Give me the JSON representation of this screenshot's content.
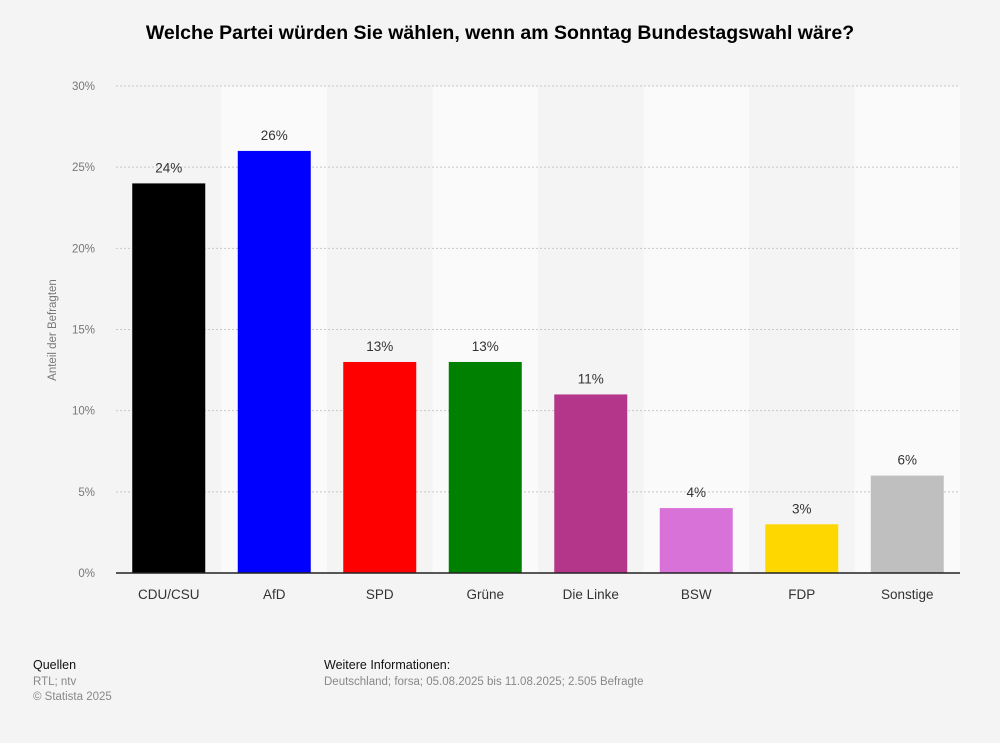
{
  "chart_data": {
    "type": "bar",
    "title": "Welche Partei würden Sie wählen, wenn am Sonntag Bundestagswahl wäre?",
    "xlabel": "",
    "ylabel": "Anteil der Befragten",
    "ylim": [
      0,
      30
    ],
    "yticks": [
      "0%",
      "5%",
      "10%",
      "15%",
      "20%",
      "25%",
      "30%"
    ],
    "grid": true,
    "categories": [
      "CDU/CSU",
      "AfD",
      "SPD",
      "Grüne",
      "Die Linke",
      "BSW",
      "FDP",
      "Sonstige"
    ],
    "values": [
      24,
      26,
      13,
      13,
      11,
      4,
      3,
      6
    ],
    "data_labels": [
      "24%",
      "26%",
      "13%",
      "13%",
      "11%",
      "4%",
      "3%",
      "6%"
    ],
    "colors": [
      "#000000",
      "#0000ff",
      "#ff0000",
      "#008000",
      "#b3368b",
      "#d872d8",
      "#ffd700",
      "#bfbfbf"
    ]
  },
  "footer": {
    "sources_heading": "Quellen",
    "sources": "RTL; ntv",
    "copyright": "© Statista 2025",
    "info_heading": "Weitere Informationen:",
    "info": "Deutschland; forsa; 05.08.2025 bis 11.08.2025; 2.505 Befragte"
  }
}
